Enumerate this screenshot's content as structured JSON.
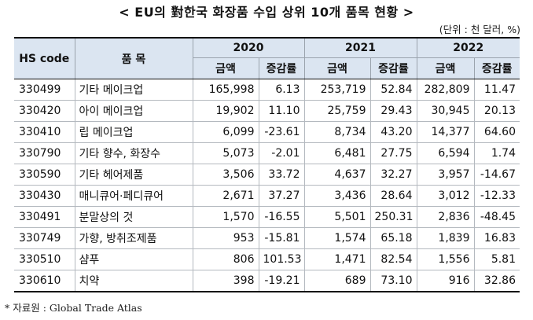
{
  "title": "< EU의 對한국 화장품 수입 상위 10개 품목 현황 >",
  "unit": "(단위 : 천 달러, %)",
  "headers": {
    "hs_code": "HS code",
    "item": "품 목",
    "years": [
      "2020",
      "2021",
      "2022"
    ],
    "amount": "금액",
    "change": "증감률"
  },
  "rows": [
    {
      "hs": "330499",
      "item": "기타 메이크업",
      "v2020": "165,998",
      "c2020": "6.13",
      "v2021": "253,719",
      "c2021": "52.84",
      "v2022": "282,809",
      "c2022": "11.47"
    },
    {
      "hs": "330420",
      "item": "아이 메이크업",
      "v2020": "19,902",
      "c2020": "11.10",
      "v2021": "25,759",
      "c2021": "29.43",
      "v2022": "30,945",
      "c2022": "20.13"
    },
    {
      "hs": "330410",
      "item": "립 메이크업",
      "v2020": "6,099",
      "c2020": "-23.61",
      "v2021": "8,734",
      "c2021": "43.20",
      "v2022": "14,377",
      "c2022": "64.60"
    },
    {
      "hs": "330790",
      "item": "기타 향수, 화장수",
      "v2020": "5,073",
      "c2020": "-2.01",
      "v2021": "6,481",
      "c2021": "27.75",
      "v2022": "6,594",
      "c2022": "1.74"
    },
    {
      "hs": "330590",
      "item": "기타 헤어제품",
      "v2020": "3,506",
      "c2020": "33.72",
      "v2021": "4,637",
      "c2021": "32.27",
      "v2022": "3,957",
      "c2022": "-14.67"
    },
    {
      "hs": "330430",
      "item": "매니큐어·페디큐어",
      "v2020": "2,671",
      "c2020": "37.27",
      "v2021": "3,436",
      "c2021": "28.64",
      "v2022": "3,012",
      "c2022": "-12.33"
    },
    {
      "hs": "330491",
      "item": "분말상의 것",
      "v2020": "1,570",
      "c2020": "-16.55",
      "v2021": "5,501",
      "c2021": "250.31",
      "v2022": "2,836",
      "c2022": "-48.45"
    },
    {
      "hs": "330749",
      "item": "가향, 방취조제품",
      "v2020": "953",
      "c2020": "-15.81",
      "v2021": "1,574",
      "c2021": "65.18",
      "v2022": "1,839",
      "c2022": "16.83"
    },
    {
      "hs": "330510",
      "item": "샴푸",
      "v2020": "806",
      "c2020": "101.53",
      "v2021": "1,471",
      "c2021": "82.54",
      "v2022": "1,556",
      "c2022": "5.81"
    },
    {
      "hs": "330610",
      "item": "치약",
      "v2020": "398",
      "c2020": "-19.21",
      "v2021": "689",
      "c2021": "73.10",
      "v2022": "916",
      "c2022": "32.86"
    }
  ],
  "footnote": "* 자료원 : Global Trade Atlas"
}
